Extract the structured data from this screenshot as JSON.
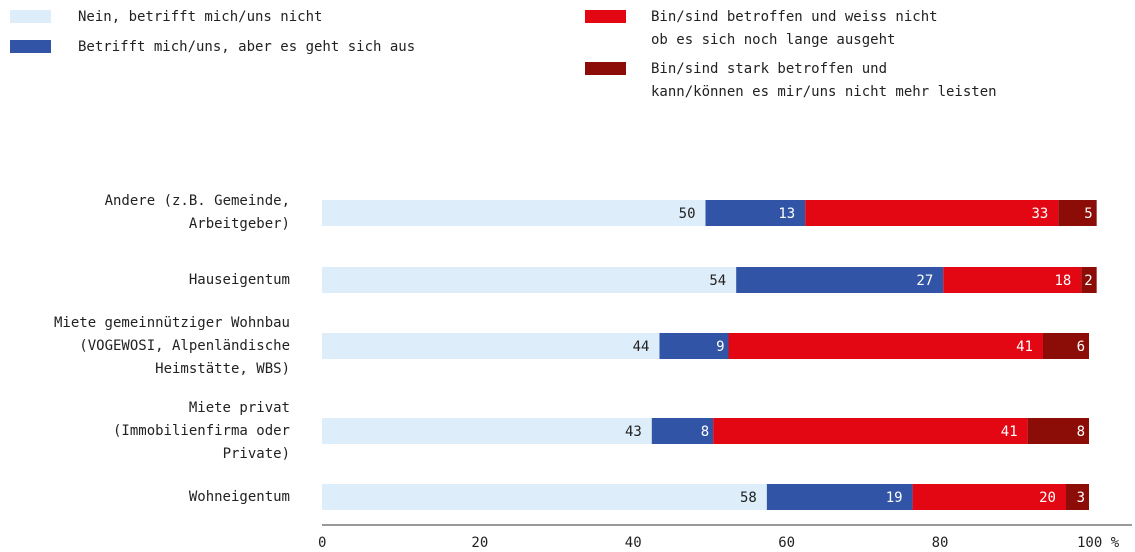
{
  "chart_data": {
    "type": "stacked-bar-horizontal",
    "categories": [
      "Andere (z.B. Gemeinde,\nArbeitgeber)",
      "Hauseigentum",
      "Miete gemeinnütziger Wohnbau\n(VOGEWOSI, Alpenländische\nHeimstätte, WBS)",
      "Miete privat\n(Immobilienfirma oder\nPrivate)",
      "Wohneigentum"
    ],
    "series": [
      {
        "name": "Nein, betrifft mich/uns nicht",
        "color": "#ddeefa",
        "label_color": "#222222",
        "values": [
          50,
          54,
          44,
          43,
          58
        ]
      },
      {
        "name": "Betrifft mich/uns, aber es geht sich aus",
        "color": "#3254a6",
        "label_color": "#ffffff",
        "values": [
          13,
          27,
          9,
          8,
          19
        ]
      },
      {
        "name": "Bin/sind betroffen und weiss nicht\nob es sich noch lange ausgeht",
        "color": "#e30613",
        "label_color": "#ffffff",
        "values": [
          33,
          18,
          41,
          41,
          20
        ]
      },
      {
        "name": "Bin/sind stark betroffen und\nkann/können es mir/uns nicht mehr leisten",
        "color": "#8c0d07",
        "label_color": "#ffffff",
        "values": [
          5,
          2,
          6,
          8,
          3
        ]
      }
    ],
    "xlim": [
      0,
      100
    ],
    "xticks": [
      0,
      20,
      40,
      60,
      80,
      {
        "value": 100,
        "label": "100 %"
      }
    ]
  }
}
